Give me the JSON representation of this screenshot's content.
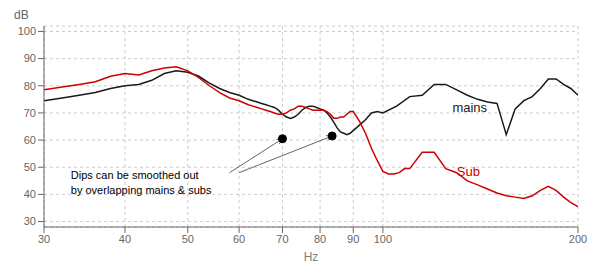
{
  "chart_data": {
    "type": "line",
    "xlabel": "Hz",
    "ylabel": "dB",
    "log": "x",
    "grid": true,
    "xlim": [
      30,
      200
    ],
    "xticks": [
      30,
      40,
      50,
      60,
      70,
      80,
      90,
      100,
      200
    ],
    "ylim": [
      28,
      102
    ],
    "yticks": [
      30,
      40,
      50,
      60,
      70,
      80,
      90,
      100
    ],
    "series": [
      {
        "name": "mains",
        "color": "#1a1a1a",
        "label_x": 128,
        "label_y": 72,
        "x": [
          30,
          32,
          34,
          36,
          38,
          40,
          42,
          44,
          46,
          48,
          50,
          52,
          54,
          56,
          58,
          60,
          62,
          63,
          64,
          65,
          66,
          67,
          68,
          69,
          70,
          71,
          72,
          73,
          74,
          75,
          76,
          77,
          78,
          79,
          80,
          81,
          82,
          83,
          84,
          85,
          86,
          87,
          88,
          89,
          90,
          92,
          94,
          96,
          98,
          100,
          105,
          110,
          115,
          120,
          125,
          130,
          135,
          140,
          145,
          150,
          155,
          160,
          165,
          170,
          175,
          180,
          185,
          190,
          195,
          200
        ],
        "values": [
          74.5,
          75.5,
          76.5,
          77.5,
          79.0,
          80.0,
          80.5,
          82.0,
          84.5,
          85.5,
          85.0,
          83.5,
          81.0,
          79.0,
          77.5,
          76.5,
          75.0,
          74.5,
          74.0,
          73.5,
          73.0,
          72.5,
          72.0,
          71.0,
          69.5,
          68.5,
          68.0,
          68.5,
          69.5,
          71.0,
          72.0,
          72.5,
          72.5,
          72.0,
          71.5,
          71.0,
          70.0,
          68.5,
          66.5,
          64.5,
          63.0,
          62.5,
          62.0,
          62.5,
          63.5,
          65.5,
          67.5,
          70.0,
          70.5,
          70.0,
          72.5,
          76.0,
          76.5,
          80.5,
          80.5,
          78.5,
          76.5,
          75.0,
          74.0,
          73.5,
          62.0,
          71.5,
          74.5,
          76.0,
          79.0,
          82.5,
          82.5,
          80.5,
          79.0,
          76.5
        ]
      },
      {
        "name": "Sub",
        "color": "#cc0000",
        "label_x": 130,
        "label_y": 48.5,
        "x": [
          30,
          32,
          34,
          36,
          38,
          40,
          42,
          44,
          46,
          48,
          50,
          52,
          54,
          56,
          58,
          60,
          62,
          63,
          64,
          65,
          66,
          67,
          68,
          69,
          70,
          71,
          72,
          73,
          74,
          75,
          76,
          77,
          78,
          79,
          80,
          81,
          82,
          83,
          84,
          85,
          86,
          87,
          88,
          89,
          90,
          92,
          94,
          96,
          98,
          100,
          102,
          104,
          106,
          108,
          110,
          115,
          120,
          125,
          130,
          135,
          140,
          145,
          150,
          155,
          160,
          165,
          170,
          175,
          180,
          185,
          190,
          195,
          200
        ],
        "values": [
          78.5,
          79.5,
          80.5,
          81.5,
          83.5,
          84.5,
          84.0,
          85.5,
          86.5,
          87.0,
          85.5,
          83.0,
          80.0,
          77.5,
          75.5,
          74.5,
          73.0,
          72.5,
          72.0,
          71.5,
          71.0,
          70.5,
          70.0,
          69.5,
          69.5,
          70.0,
          71.0,
          71.5,
          72.5,
          72.5,
          72.0,
          71.5,
          71.0,
          71.0,
          71.0,
          71.0,
          70.5,
          69.5,
          68.0,
          68.0,
          68.5,
          68.5,
          69.5,
          70.5,
          70.5,
          67.0,
          62.5,
          57.0,
          52.5,
          48.5,
          47.5,
          47.5,
          48.0,
          49.5,
          49.5,
          55.5,
          55.5,
          49.5,
          48.0,
          45.0,
          43.5,
          42.0,
          40.5,
          39.5,
          39.0,
          38.5,
          39.5,
          41.5,
          43.0,
          41.5,
          39.0,
          37.0,
          35.5
        ]
      }
    ],
    "annotations": [
      {
        "text": "Dips can be smoothed out\nby overlapping mains & subs",
        "x": 33,
        "y": 49.5,
        "points": [
          {
            "x": 70.0,
            "y": 60.5
          },
          {
            "x": 83.5,
            "y": 61.5
          }
        ],
        "arrow_from": [
          {
            "x": 58.0,
            "y": 48.0
          },
          {
            "x": 60.0,
            "y": 48.0
          }
        ]
      }
    ]
  }
}
